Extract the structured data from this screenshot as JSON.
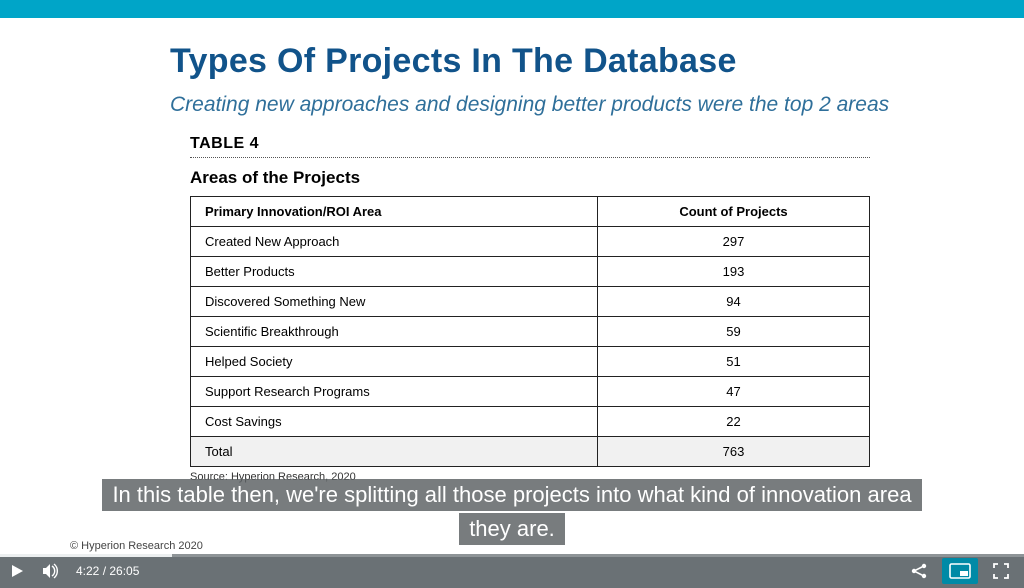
{
  "slide": {
    "title": "Types Of Projects In The Database",
    "subtitle": "Creating new approaches and designing better products were the top 2 areas",
    "table_label": "TABLE 4",
    "table_caption": "Areas of the Projects",
    "columns": [
      "Primary Innovation/ROI Area",
      "Count of Projects"
    ],
    "rows": [
      {
        "area": "Created New Approach",
        "count": "297"
      },
      {
        "area": "Better Products",
        "count": "193"
      },
      {
        "area": "Discovered Something New",
        "count": "94"
      },
      {
        "area": "Scientific Breakthrough",
        "count": "59"
      },
      {
        "area": "Helped Society",
        "count": "51"
      },
      {
        "area": "Support Research Programs",
        "count": "47"
      },
      {
        "area": "Cost Savings",
        "count": "22"
      }
    ],
    "total_label": "Total",
    "total_count": "763",
    "source_line": "Source: Hyperion Research, 2020",
    "copyright": "© Hyperion Research 2020"
  },
  "caption": {
    "line1": "In this table then, we're splitting all those projects into what kind of innovation area",
    "line2": "they are."
  },
  "player": {
    "elapsed": "4:22",
    "duration": "26:05",
    "separator": " / ",
    "progress_pct": 16.8
  },
  "colors": {
    "brand_blue": "#00a5c8",
    "title_blue": "#11538a",
    "subtitle_blue": "#2f6f9a",
    "player_bg": "#6a7175",
    "accent_green": "#00a884"
  }
}
